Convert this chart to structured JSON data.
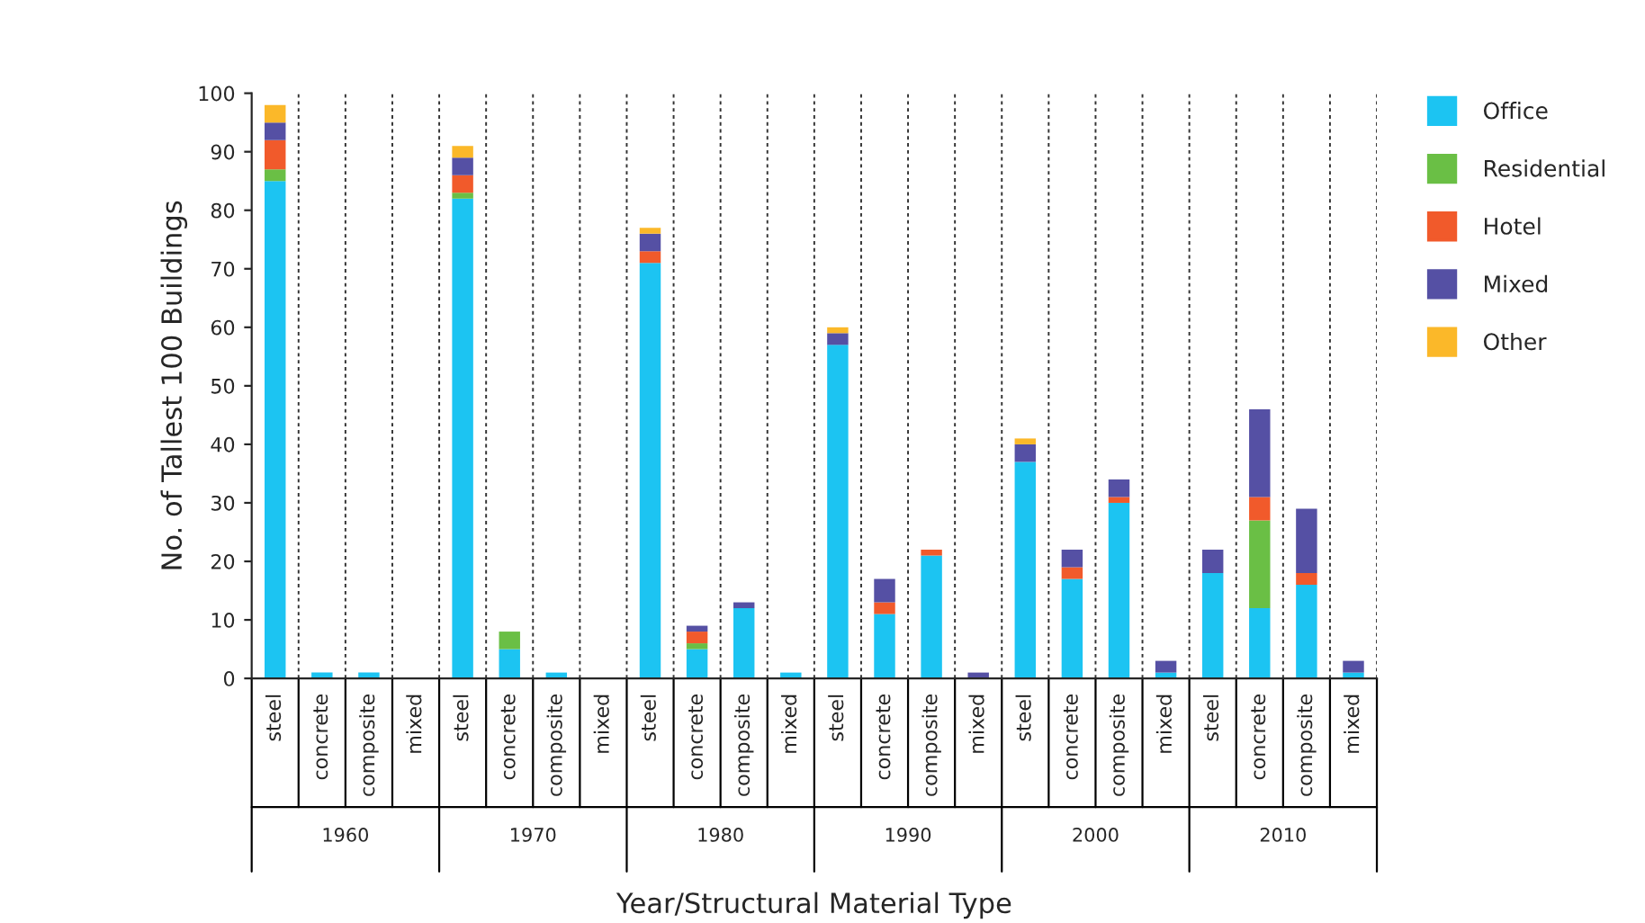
{
  "chart_data": {
    "type": "bar",
    "stacked": true,
    "xlabel": "Year/Structural Material Type",
    "ylabel": "No. of Tallest 100 Buildings",
    "categories": [
      "steel",
      "concrete",
      "composite",
      "mixed",
      "steel",
      "concrete",
      "composite",
      "mixed",
      "steel",
      "concrete",
      "composite",
      "mixed",
      "steel",
      "concrete",
      "composite",
      "mixed",
      "steel",
      "concrete",
      "composite",
      "mixed",
      "steel",
      "concrete",
      "composite",
      "mixed"
    ],
    "annotations": [
      "1960",
      "1970",
      "1980",
      "1990",
      "2000",
      "2010"
    ],
    "series": [
      {
        "name": "Office",
        "color": "#1cc4f2",
        "values": [
          85,
          1,
          1,
          0,
          82,
          5,
          1,
          0,
          71,
          5,
          12,
          1,
          57,
          11,
          21,
          0,
          37,
          17,
          30,
          1,
          18,
          12,
          16,
          1
        ]
      },
      {
        "name": "Residential",
        "color": "#6abf45",
        "values": [
          2,
          0,
          0,
          0,
          1,
          3,
          0,
          0,
          0,
          1,
          0,
          0,
          0,
          0,
          0,
          0,
          0,
          0,
          0,
          0,
          0,
          15,
          0,
          0
        ]
      },
      {
        "name": "Hotel",
        "color": "#f15a2b",
        "values": [
          5,
          0,
          0,
          0,
          3,
          0,
          0,
          0,
          2,
          2,
          0,
          0,
          0,
          2,
          1,
          0,
          0,
          2,
          1,
          0,
          0,
          4,
          2,
          0
        ]
      },
      {
        "name": "Mixed",
        "color": "#5550a4",
        "values": [
          3,
          0,
          0,
          0,
          3,
          0,
          0,
          0,
          3,
          1,
          1,
          0,
          2,
          4,
          0,
          1,
          3,
          3,
          3,
          2,
          4,
          15,
          11,
          2
        ]
      },
      {
        "name": "Other",
        "color": "#fbb829",
        "values": [
          3,
          0,
          0,
          0,
          2,
          0,
          0,
          0,
          1,
          0,
          0,
          0,
          1,
          0,
          0,
          0,
          1,
          0,
          0,
          0,
          0,
          0,
          0,
          0
        ]
      }
    ],
    "ylim": [
      0,
      100
    ],
    "yticks": [
      0,
      10,
      20,
      30,
      40,
      50,
      60,
      70,
      80,
      90,
      100
    ],
    "grid": false,
    "legend": "top right"
  }
}
